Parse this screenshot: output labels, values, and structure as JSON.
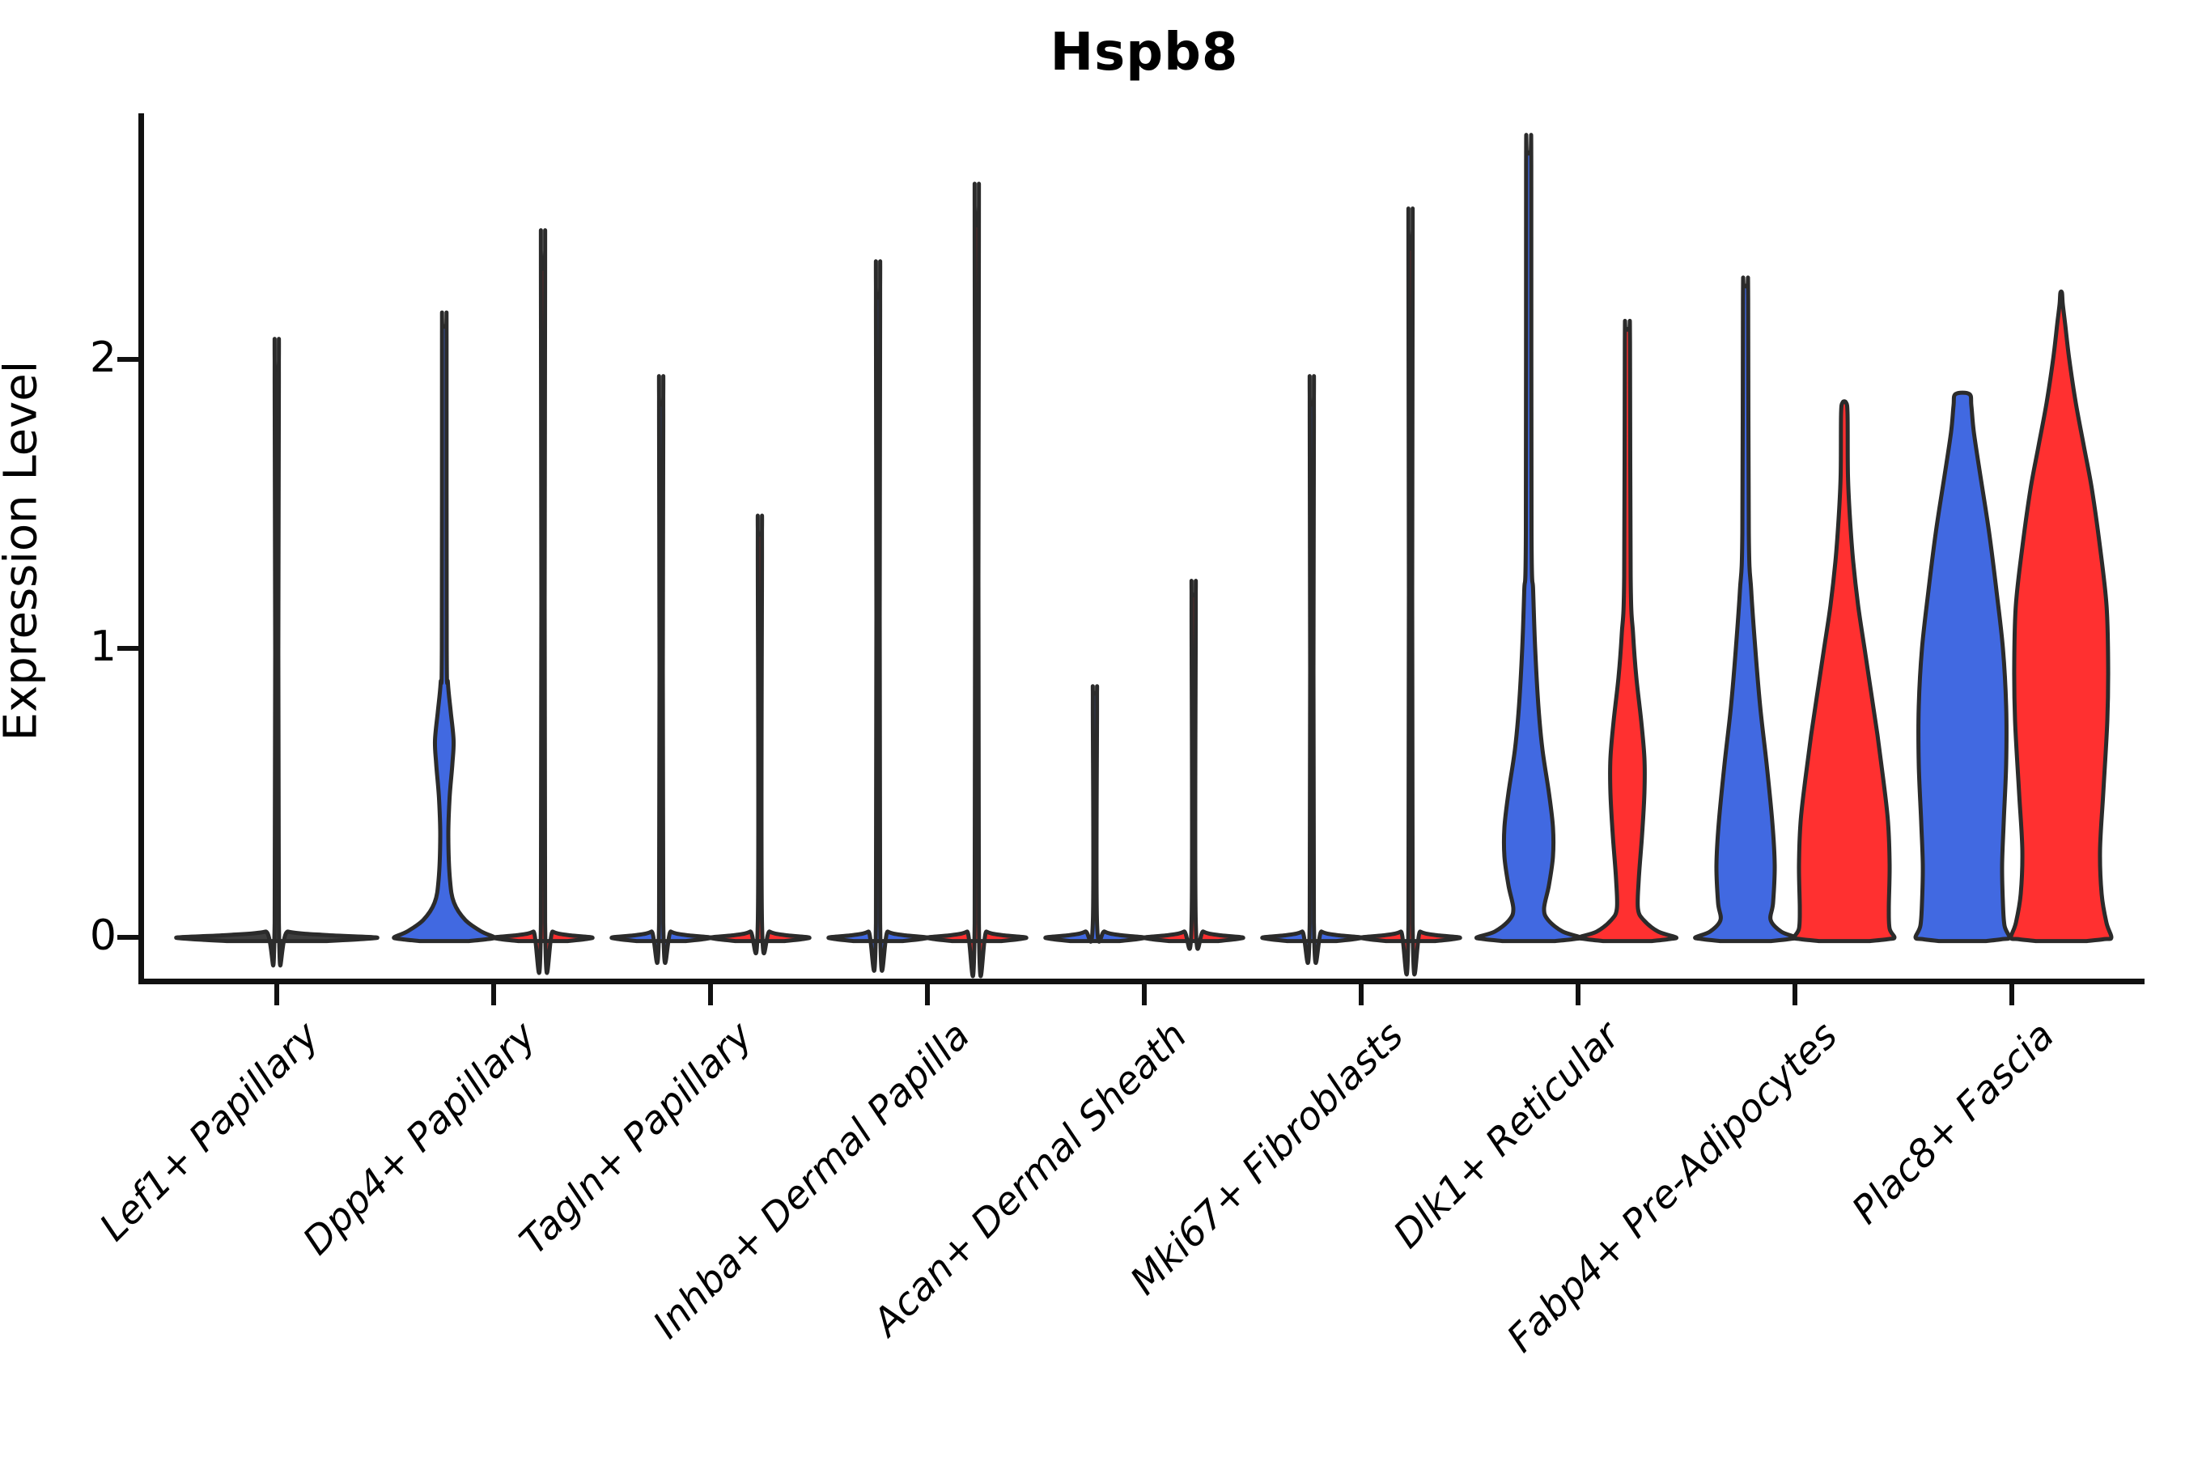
{
  "chart_data": {
    "type": "violin",
    "title": "Hspb8",
    "ylabel": "Expression Level",
    "ylim": [
      -0.06,
      2.9
    ],
    "grid": false,
    "legend": null,
    "yticks": [
      {
        "value": 0,
        "label": "0"
      },
      {
        "value": 1,
        "label": "1"
      },
      {
        "value": 2,
        "label": "2"
      }
    ],
    "categories": [
      "Lef1+ Papillary",
      "Dpp4+ Papillary",
      "Tagln+ Papillary",
      "Inhba+ Dermal Papilla",
      "Acan+ Dermal Sheath",
      "Mki67+ Fibroblasts",
      "Dlk1+ Reticular",
      "Fabp4+ Pre-Adipocytes",
      "Plac8+ Fascia"
    ],
    "colors": {
      "blue": "#4169E1",
      "red": "#FF3030",
      "single": "#3E3E3E",
      "outline": "#2B2B2B"
    },
    "violins": [
      {
        "category_index": 0,
        "group": "single",
        "max": 1.96,
        "profile": [
          [
            -0.013,
            61
          ],
          [
            -0.006,
            106
          ],
          [
            0,
            122
          ],
          [
            0.008,
            60
          ],
          [
            0.02,
            14
          ],
          [
            0.05,
            2.6
          ],
          [
            1.92,
            2.6
          ],
          [
            1.96,
            2.2
          ]
        ]
      },
      {
        "category_index": 1,
        "group": "blue",
        "max": 2.11,
        "profile": [
          [
            -0.013,
            30
          ],
          [
            -0.006,
            54
          ],
          [
            0,
            62
          ],
          [
            0.02,
            46
          ],
          [
            0.06,
            26
          ],
          [
            0.12,
            12
          ],
          [
            0.2,
            7
          ],
          [
            0.35,
            5
          ],
          [
            0.48,
            6.5
          ],
          [
            0.6,
            10
          ],
          [
            0.68,
            11.5
          ],
          [
            0.78,
            8
          ],
          [
            0.88,
            4.5
          ],
          [
            1.0,
            3
          ],
          [
            2.07,
            2.8
          ],
          [
            2.11,
            2.2
          ]
        ]
      },
      {
        "category_index": 1,
        "group": "red",
        "max": 2.31,
        "profile": [
          [
            -0.013,
            30
          ],
          [
            -0.006,
            53
          ],
          [
            0,
            60
          ],
          [
            0.008,
            30
          ],
          [
            0.02,
            12
          ],
          [
            0.05,
            2.6
          ],
          [
            2.27,
            2.6
          ],
          [
            2.31,
            2.2
          ]
        ]
      },
      {
        "category_index": 2,
        "group": "blue",
        "max": 1.84,
        "profile": [
          [
            -0.013,
            30
          ],
          [
            -0.006,
            53
          ],
          [
            0,
            60
          ],
          [
            0.008,
            30
          ],
          [
            0.02,
            12
          ],
          [
            0.05,
            2.6
          ],
          [
            1.8,
            2.6
          ],
          [
            1.84,
            2.2
          ]
        ]
      },
      {
        "category_index": 2,
        "group": "red",
        "max": 1.39,
        "profile": [
          [
            -0.013,
            30
          ],
          [
            -0.006,
            53
          ],
          [
            0,
            60
          ],
          [
            0.008,
            30
          ],
          [
            0.02,
            12
          ],
          [
            0.05,
            2.6
          ],
          [
            1.35,
            2.6
          ],
          [
            1.39,
            2.2
          ]
        ]
      },
      {
        "category_index": 3,
        "group": "blue",
        "max": 2.21,
        "profile": [
          [
            -0.013,
            30
          ],
          [
            -0.006,
            53
          ],
          [
            0,
            60
          ],
          [
            0.008,
            30
          ],
          [
            0.02,
            12
          ],
          [
            0.05,
            2.6
          ],
          [
            2.17,
            2.6
          ],
          [
            2.21,
            2.2
          ]
        ]
      },
      {
        "category_index": 3,
        "group": "red",
        "max": 2.46,
        "profile": [
          [
            -0.013,
            30
          ],
          [
            -0.006,
            53
          ],
          [
            0,
            60
          ],
          [
            0.008,
            30
          ],
          [
            0.02,
            12
          ],
          [
            0.05,
            2.6
          ],
          [
            2.42,
            2.6
          ],
          [
            2.46,
            2.2
          ]
        ]
      },
      {
        "category_index": 4,
        "group": "blue",
        "max": 0.84,
        "profile": [
          [
            -0.013,
            30
          ],
          [
            -0.006,
            53
          ],
          [
            0,
            60
          ],
          [
            0.008,
            30
          ],
          [
            0.02,
            12
          ],
          [
            0.05,
            2.6
          ],
          [
            0.8,
            2.6
          ],
          [
            0.84,
            2.2
          ]
        ]
      },
      {
        "category_index": 4,
        "group": "red",
        "max": 1.18,
        "profile": [
          [
            -0.013,
            30
          ],
          [
            -0.006,
            53
          ],
          [
            0,
            60
          ],
          [
            0.008,
            30
          ],
          [
            0.02,
            12
          ],
          [
            0.05,
            2.6
          ],
          [
            1.14,
            2.6
          ],
          [
            1.18,
            2.2
          ]
        ]
      },
      {
        "category_index": 5,
        "group": "blue",
        "max": 1.84,
        "profile": [
          [
            -0.013,
            30
          ],
          [
            -0.006,
            53
          ],
          [
            0,
            60
          ],
          [
            0.008,
            30
          ],
          [
            0.02,
            12
          ],
          [
            0.05,
            2.6
          ],
          [
            1.8,
            2.6
          ],
          [
            1.84,
            2.2
          ]
        ]
      },
      {
        "category_index": 5,
        "group": "red",
        "max": 2.38,
        "profile": [
          [
            -0.013,
            30
          ],
          [
            -0.006,
            53
          ],
          [
            0,
            60
          ],
          [
            0.008,
            30
          ],
          [
            0.02,
            12
          ],
          [
            0.05,
            2.6
          ],
          [
            2.34,
            2.6
          ],
          [
            2.38,
            2.2
          ]
        ]
      },
      {
        "category_index": 6,
        "group": "blue",
        "max": 2.71,
        "profile": [
          [
            -0.013,
            32
          ],
          [
            -0.006,
            56
          ],
          [
            0,
            64
          ],
          [
            0.02,
            42
          ],
          [
            0.06,
            24
          ],
          [
            0.1,
            19
          ],
          [
            0.18,
            25
          ],
          [
            0.28,
            30
          ],
          [
            0.38,
            30
          ],
          [
            0.5,
            25
          ],
          [
            0.65,
            17
          ],
          [
            0.8,
            12
          ],
          [
            1.0,
            8
          ],
          [
            1.2,
            5.5
          ],
          [
            1.4,
            3.5
          ],
          [
            2.67,
            3.2
          ],
          [
            2.71,
            2.2
          ]
        ]
      },
      {
        "category_index": 6,
        "group": "red",
        "max": 2.1,
        "profile": [
          [
            -0.013,
            30
          ],
          [
            -0.006,
            52
          ],
          [
            0,
            60
          ],
          [
            0.02,
            38
          ],
          [
            0.06,
            20
          ],
          [
            0.1,
            13
          ],
          [
            0.2,
            14
          ],
          [
            0.35,
            18
          ],
          [
            0.5,
            21
          ],
          [
            0.62,
            21
          ],
          [
            0.75,
            17
          ],
          [
            0.9,
            11
          ],
          [
            1.05,
            7
          ],
          [
            1.25,
            4
          ],
          [
            2.06,
            3.2
          ],
          [
            2.1,
            2.2
          ]
        ]
      },
      {
        "category_index": 7,
        "group": "blue",
        "max": 2.25,
        "profile": [
          [
            -0.013,
            31
          ],
          [
            -0.006,
            54
          ],
          [
            0,
            62
          ],
          [
            0.02,
            44
          ],
          [
            0.06,
            31
          ],
          [
            0.12,
            34
          ],
          [
            0.25,
            36
          ],
          [
            0.4,
            33
          ],
          [
            0.6,
            26
          ],
          [
            0.8,
            18
          ],
          [
            1.0,
            12
          ],
          [
            1.2,
            7
          ],
          [
            1.4,
            4
          ],
          [
            2.21,
            3.2
          ],
          [
            2.25,
            2.2
          ]
        ]
      },
      {
        "category_index": 7,
        "group": "red",
        "max": 1.85,
        "profile": [
          [
            -0.013,
            31
          ],
          [
            -0.006,
            55
          ],
          [
            0,
            62
          ],
          [
            0.03,
            56
          ],
          [
            0.1,
            55
          ],
          [
            0.25,
            56
          ],
          [
            0.4,
            54
          ],
          [
            0.55,
            48
          ],
          [
            0.7,
            41
          ],
          [
            0.85,
            33
          ],
          [
            1.0,
            25
          ],
          [
            1.15,
            17
          ],
          [
            1.3,
            11
          ],
          [
            1.45,
            7
          ],
          [
            1.6,
            4.5
          ],
          [
            1.81,
            4
          ],
          [
            1.85,
            2.2
          ]
        ]
      },
      {
        "category_index": 8,
        "group": "blue",
        "max": 1.88,
        "profile": [
          [
            -0.013,
            29
          ],
          [
            -0.006,
            50
          ],
          [
            0,
            58
          ],
          [
            0.04,
            52
          ],
          [
            0.12,
            50
          ],
          [
            0.25,
            49
          ],
          [
            0.4,
            51
          ],
          [
            0.6,
            54
          ],
          [
            0.8,
            54
          ],
          [
            1.0,
            50
          ],
          [
            1.2,
            42
          ],
          [
            1.4,
            33
          ],
          [
            1.6,
            22
          ],
          [
            1.75,
            14
          ],
          [
            1.84,
            11
          ],
          [
            1.88,
            8.5
          ]
        ]
      },
      {
        "category_index": 8,
        "group": "red",
        "max": 2.23,
        "profile": [
          [
            -0.013,
            31
          ],
          [
            -0.006,
            54
          ],
          [
            0,
            62
          ],
          [
            0.05,
            56
          ],
          [
            0.15,
            50
          ],
          [
            0.3,
            48
          ],
          [
            0.5,
            52
          ],
          [
            0.75,
            57
          ],
          [
            0.95,
            58
          ],
          [
            1.15,
            56
          ],
          [
            1.35,
            48
          ],
          [
            1.55,
            38
          ],
          [
            1.7,
            28
          ],
          [
            1.85,
            18
          ],
          [
            2.0,
            10
          ],
          [
            2.12,
            5
          ],
          [
            2.19,
            2
          ],
          [
            2.23,
            1
          ]
        ]
      }
    ]
  }
}
